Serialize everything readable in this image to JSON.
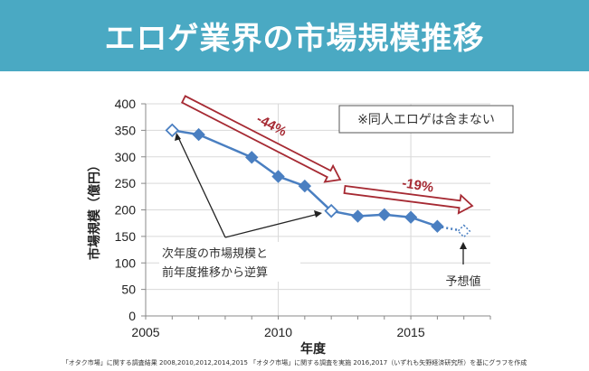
{
  "header": {
    "title": "エロゲ業界の市場規模推移"
  },
  "footer": {
    "source": "「オタク市場」に関する調査結果  2008,2010,2012,2014,2015  「オタク市場」に関する調査を実施  2016,2017（いずれも矢野経済研究所）を基にグラフを作成"
  },
  "colors": {
    "header": "#4aa9c3",
    "series": "#4a7fc1",
    "arrow": "#a62a33",
    "grid": "#d9d9d9"
  },
  "chart_data": {
    "type": "line",
    "title": "エロゲ業界の市場規模推移",
    "xlabel": "年度",
    "ylabel": "市場規模（億円）",
    "xlim": [
      2005,
      2018
    ],
    "ylim": [
      0,
      400
    ],
    "x_ticks": [
      "2005",
      "2010",
      "2015"
    ],
    "y_ticks": [
      "0",
      "50",
      "100",
      "150",
      "200",
      "250",
      "300",
      "350",
      "400"
    ],
    "grid": true,
    "series": [
      {
        "name": "市場規模",
        "x": [
          2006,
          2007,
          2009,
          2010,
          2011,
          2012,
          2013,
          2014,
          2015,
          2016,
          2017
        ],
        "values": [
          350,
          342,
          299,
          263,
          245,
          198,
          188,
          191,
          186,
          169,
          160
        ],
        "marker_types": [
          "estimated",
          "actual",
          "actual",
          "actual",
          "actual",
          "estimated",
          "actual",
          "actual",
          "actual",
          "actual",
          "forecast"
        ]
      }
    ],
    "annotations": {
      "note_box": "※同人エロゲは含まない",
      "trend1": {
        "label": "-44%",
        "from_year": 2006,
        "to_year": 2012
      },
      "trend2": {
        "label": "-19%",
        "from_year": 2012,
        "to_year": 2017
      },
      "estimate_callout": [
        "次年度の市場規模と",
        "前年度推移から逆算"
      ],
      "forecast_label": "予想値"
    }
  }
}
